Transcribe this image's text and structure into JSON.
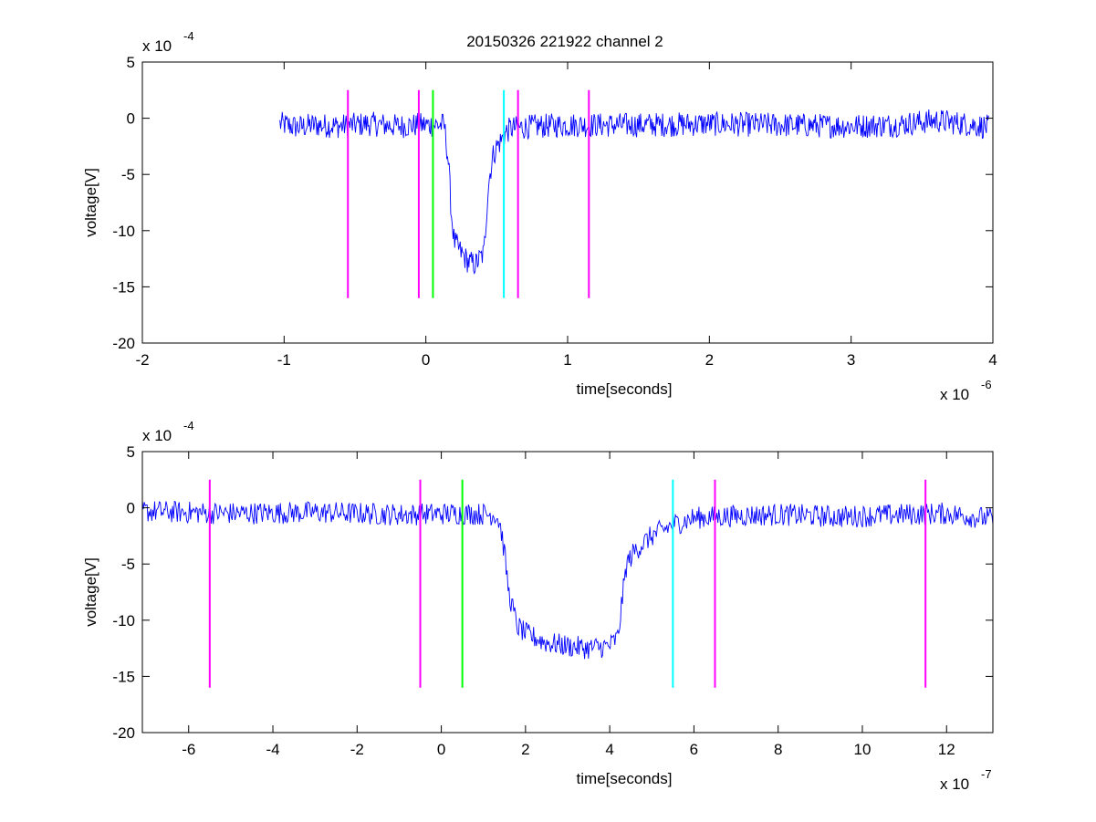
{
  "figure": {
    "title": "20150326 221922 channel 2"
  },
  "chart_data": [
    {
      "type": "line",
      "title": "20150326 221922 channel 2",
      "xlabel": "time[seconds]",
      "ylabel": "voltage[V]",
      "x_exponent_label": "x 10",
      "x_exponent": "-6",
      "y_exponent_label": "x 10",
      "y_exponent": "-4",
      "x_scale": 1e-06,
      "y_scale": 0.0001,
      "xlim": [
        -2,
        4
      ],
      "ylim": [
        -20,
        5
      ],
      "xticks": [
        -2,
        -1,
        0,
        1,
        2,
        3,
        4
      ],
      "xtick_labels": [
        "-2",
        "-1",
        "0",
        "1",
        "2",
        "3",
        "4"
      ],
      "yticks": [
        5,
        0,
        -5,
        -10,
        -15,
        -20
      ],
      "ytick_labels": [
        "5",
        "0",
        "-5",
        "-10",
        "-15",
        "-20"
      ],
      "grid": false,
      "series": [
        {
          "color": "#0000ff",
          "x": [
            -1.03,
            -0.9,
            -0.8,
            -0.6,
            -0.4,
            -0.2,
            -0.05,
            0.13,
            0.16,
            0.18,
            0.2,
            0.25,
            0.3,
            0.35,
            0.38,
            0.41,
            0.44,
            0.47,
            0.5,
            0.53,
            0.57,
            0.6,
            0.8,
            1.0,
            1.5,
            2.0,
            2.5,
            3.0,
            3.3,
            3.6,
            3.8,
            3.97
          ],
          "y": [
            -0.5,
            -0.8,
            -0.6,
            -0.7,
            -0.5,
            -0.7,
            -0.6,
            -0.6,
            -4.0,
            -8.5,
            -11.0,
            -12.0,
            -12.8,
            -13.0,
            -12.5,
            -12.0,
            -6.0,
            -3.5,
            -2.5,
            -2.0,
            -1.2,
            -0.9,
            -0.7,
            -0.6,
            -0.6,
            -0.5,
            -0.6,
            -0.7,
            -0.6,
            -0.2,
            -0.5,
            -0.8
          ],
          "noise": 1.1
        }
      ],
      "markers": [
        {
          "x": -0.55,
          "y": [
            -16,
            2.5
          ],
          "color": "#ff00ff"
        },
        {
          "x": -0.05,
          "y": [
            -16,
            2.5
          ],
          "color": "#ff00ff"
        },
        {
          "x": 0.05,
          "y": [
            -16,
            2.5
          ],
          "color": "#00ff00"
        },
        {
          "x": 0.55,
          "y": [
            -16,
            2.5
          ],
          "color": "#00ffff"
        },
        {
          "x": 0.65,
          "y": [
            -16,
            2.5
          ],
          "color": "#ff00ff"
        },
        {
          "x": 1.15,
          "y": [
            -16,
            2.5
          ],
          "color": "#ff00ff"
        }
      ]
    },
    {
      "type": "line",
      "title": "",
      "xlabel": "time[seconds]",
      "ylabel": "voltage[V]",
      "x_exponent_label": "x 10",
      "x_exponent": "-7",
      "y_exponent_label": "x 10",
      "y_exponent": "-4",
      "x_scale": 1e-07,
      "y_scale": 0.0001,
      "xlim": [
        -7.1,
        13.1
      ],
      "ylim": [
        -20,
        5
      ],
      "xticks": [
        -6,
        -4,
        -2,
        0,
        2,
        4,
        6,
        8,
        10,
        12
      ],
      "xtick_labels": [
        "-6",
        "-4",
        "-2",
        "0",
        "2",
        "4",
        "6",
        "8",
        "10",
        "12"
      ],
      "yticks": [
        5,
        0,
        -5,
        -10,
        -15,
        -20
      ],
      "ytick_labels": [
        "5",
        "0",
        "-5",
        "-10",
        "-15",
        "-20"
      ],
      "grid": false,
      "series": [
        {
          "color": "#0000ff",
          "x": [
            -7.1,
            -5.0,
            -3.0,
            -1.0,
            0.5,
            1.3,
            1.4,
            1.5,
            1.6,
            1.8,
            2.0,
            2.5,
            3.0,
            3.5,
            4.0,
            4.2,
            4.3,
            4.4,
            4.6,
            5.0,
            5.5,
            6.0,
            7.0,
            8.0,
            9.5,
            11.0,
            12.0,
            13.1
          ],
          "y": [
            -0.3,
            -0.5,
            -0.4,
            -0.6,
            -0.5,
            -0.6,
            -1.5,
            -4.0,
            -7.5,
            -10.5,
            -11.2,
            -12.0,
            -12.3,
            -12.5,
            -12.3,
            -11.5,
            -8.0,
            -5.0,
            -3.8,
            -2.5,
            -1.5,
            -0.9,
            -0.7,
            -0.6,
            -0.8,
            -0.6,
            -0.5,
            -1.0
          ],
          "noise": 1.0
        }
      ],
      "markers": [
        {
          "x": -5.5,
          "y": [
            -16,
            2.5
          ],
          "color": "#ff00ff"
        },
        {
          "x": -0.5,
          "y": [
            -16,
            2.5
          ],
          "color": "#ff00ff"
        },
        {
          "x": 0.5,
          "y": [
            -16,
            2.5
          ],
          "color": "#00ff00"
        },
        {
          "x": 5.5,
          "y": [
            -16,
            2.5
          ],
          "color": "#00ffff"
        },
        {
          "x": 6.5,
          "y": [
            -16,
            2.5
          ],
          "color": "#ff00ff"
        },
        {
          "x": 11.5,
          "y": [
            -16,
            2.5
          ],
          "color": "#ff00ff"
        }
      ]
    }
  ]
}
